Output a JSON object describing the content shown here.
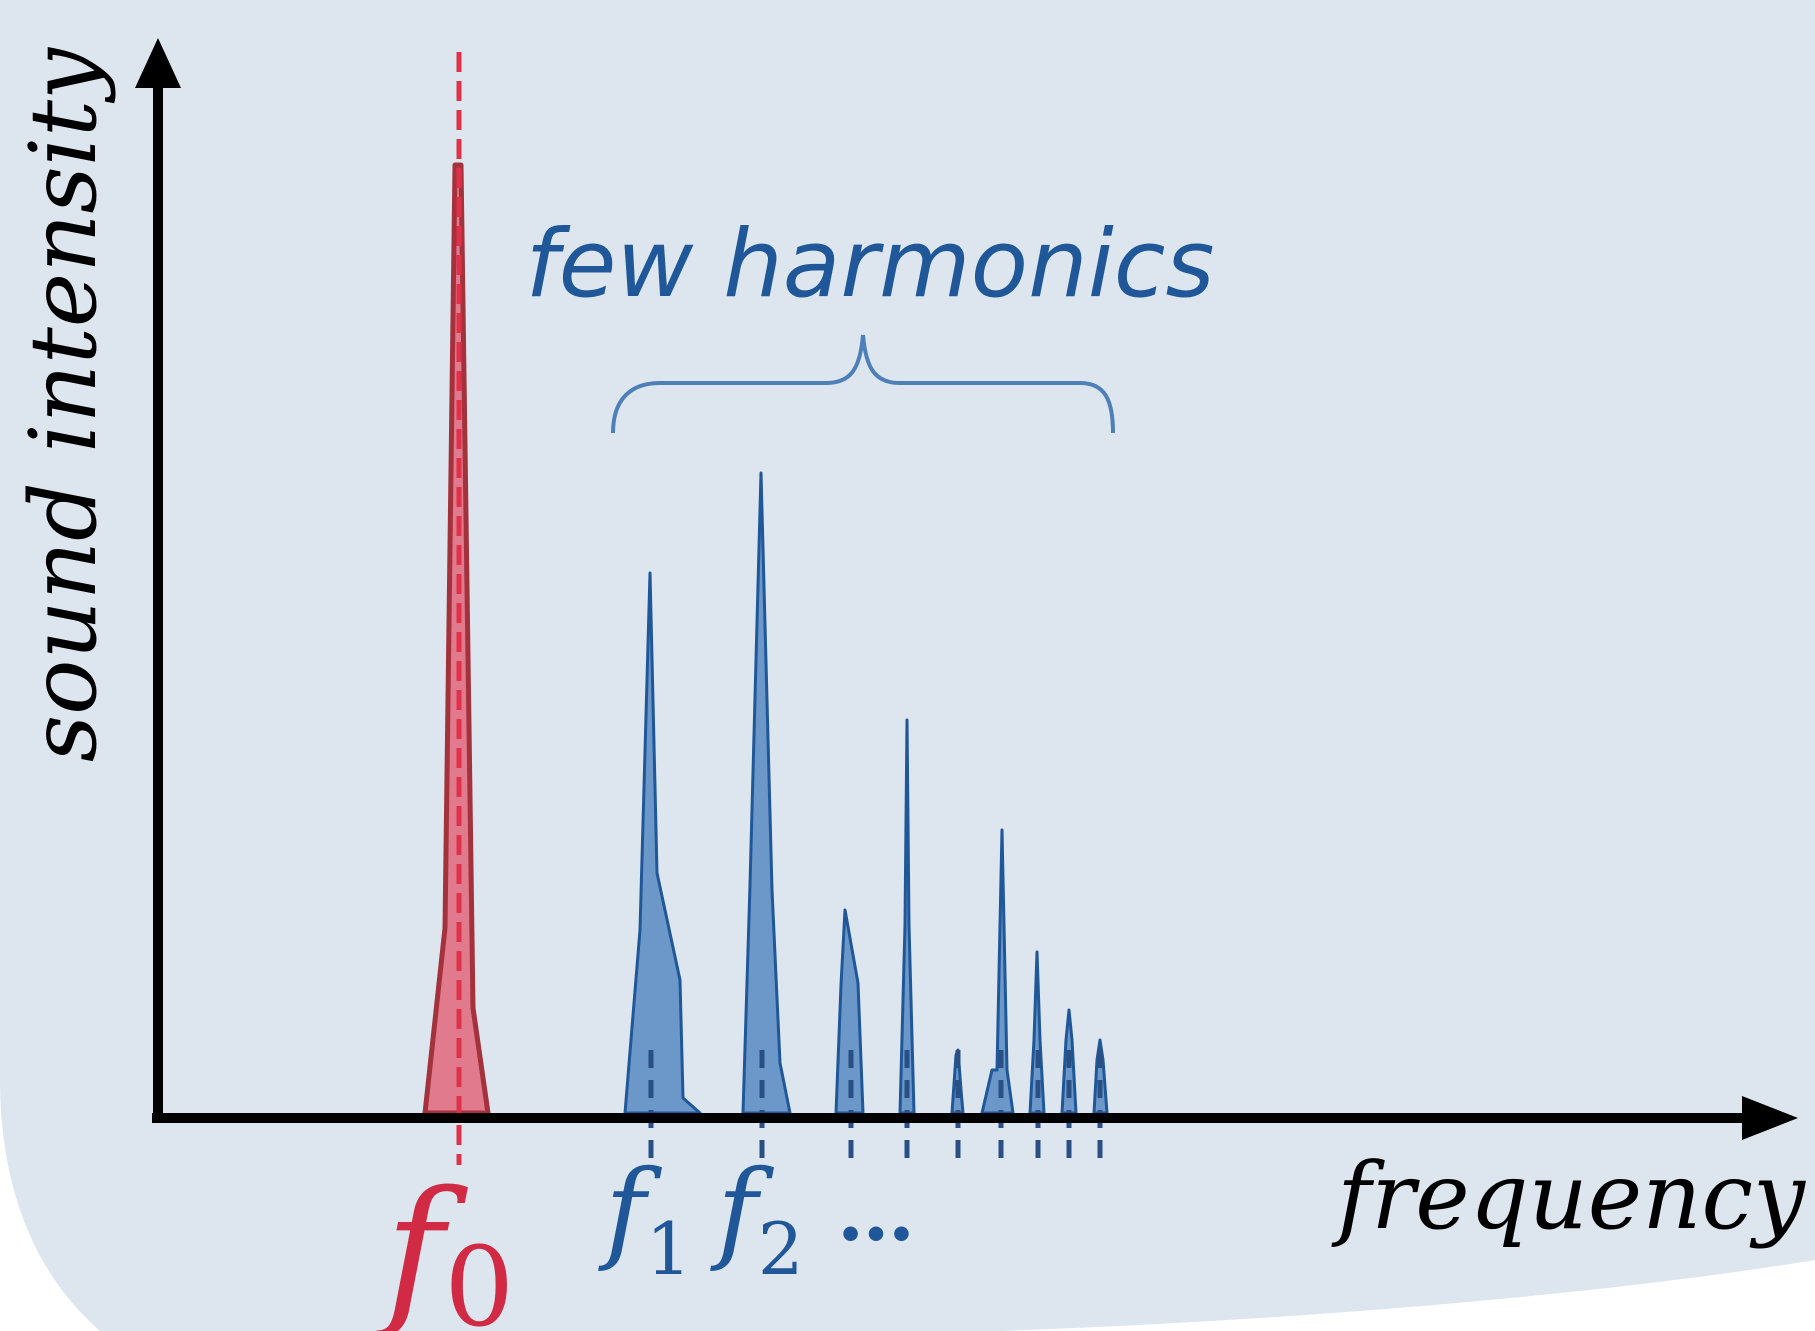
{
  "title": "few harmonics",
  "y_axis_label": "sound intensity",
  "x_axis_label": "frequency",
  "fundamental": {
    "symbol": "f",
    "subscript": "0"
  },
  "harmonic_labels": [
    {
      "symbol": "f",
      "subscript": "1"
    },
    {
      "symbol": "f",
      "subscript": "2"
    }
  ],
  "ellipsis": "…",
  "colors": {
    "background": "#dde5ee",
    "fundamental_fill": "#e07a8c",
    "fundamental_stroke": "#a3323d",
    "fundamental_dash": "#e0314a",
    "fundamental_label": "#d02a45",
    "harmonic_fill": "#6b98c8",
    "harmonic_stroke": "#1f5799",
    "harmonic_label": "#1f5799",
    "tick": "#2a4f85",
    "axis": "#000000"
  }
}
